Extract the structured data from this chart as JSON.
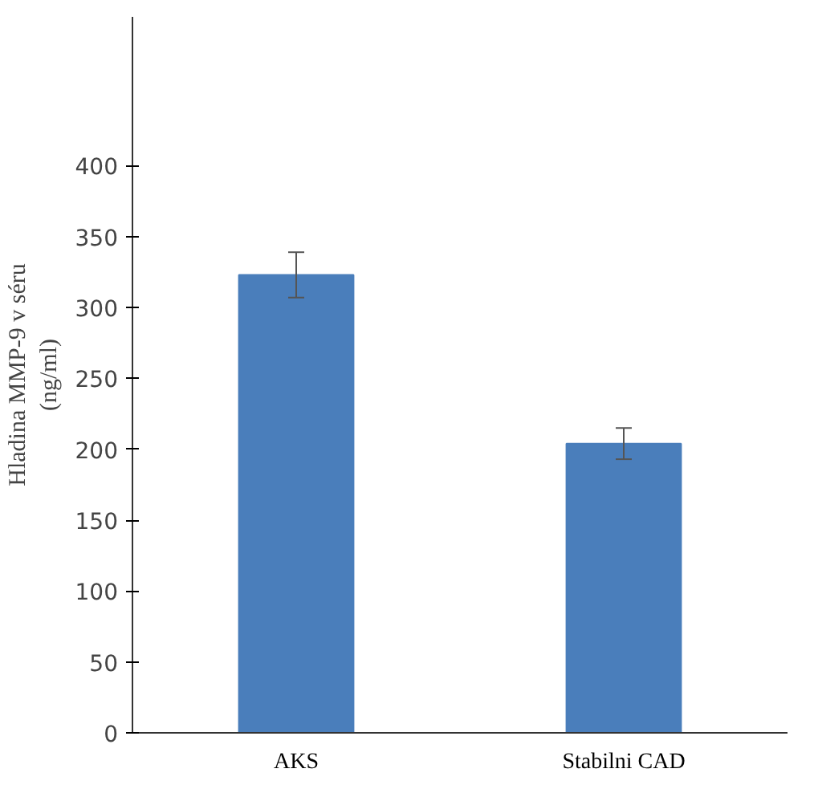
{
  "chart_data": {
    "type": "bar",
    "ylabel": "Hladina MMP-9 v séru\n(ng/ml)",
    "categories": [
      "AKS",
      "Stabilni CAD"
    ],
    "values": [
      323,
      204
    ],
    "errors": [
      16,
      11
    ],
    "color": "#4a7ebb",
    "ylim": [
      0,
      505
    ],
    "yticks": [
      0,
      50,
      100,
      150,
      200,
      250,
      300,
      350,
      400
    ],
    "grid": false
  }
}
